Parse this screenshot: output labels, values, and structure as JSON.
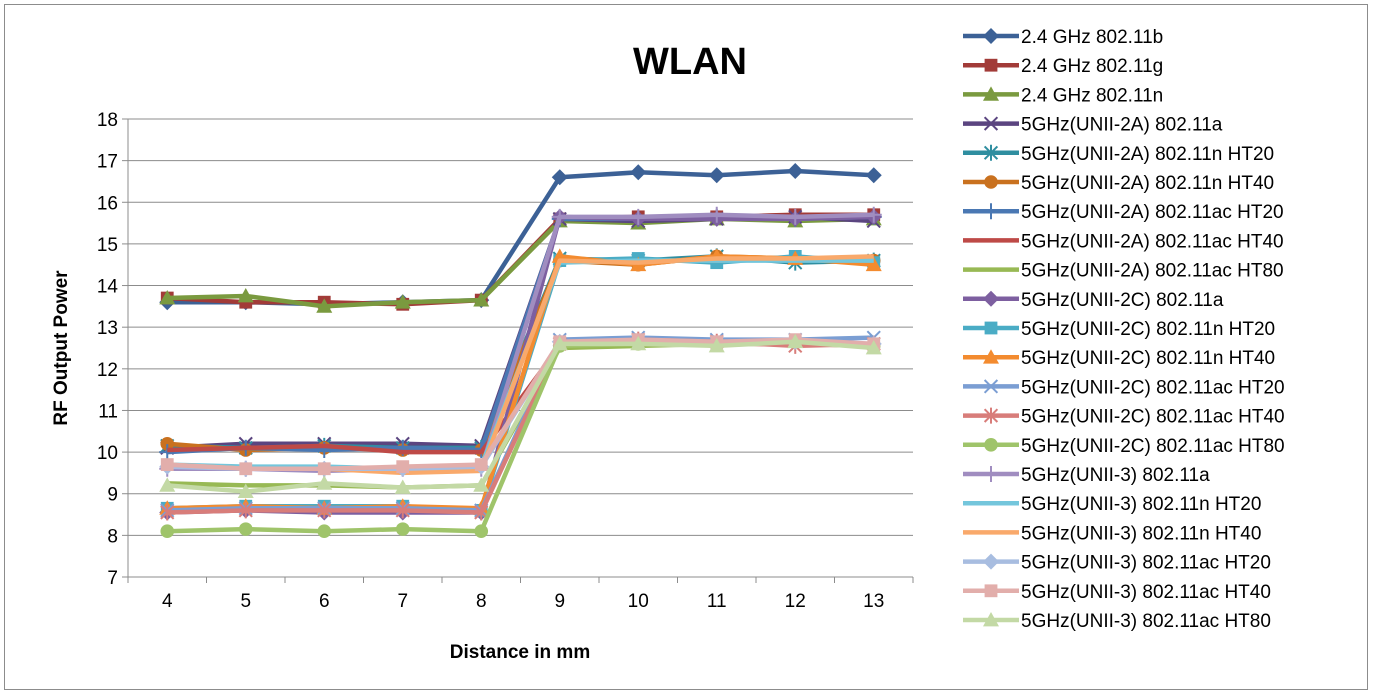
{
  "chart_data": {
    "type": "line",
    "title": "WLAN",
    "xlabel": "Distance in mm",
    "ylabel": "RF Output Power",
    "x": [
      4,
      5,
      6,
      7,
      8,
      9,
      10,
      11,
      12,
      13
    ],
    "ylim": [
      7,
      18
    ],
    "yticks": [
      "7",
      "8",
      "9",
      "10",
      "11",
      "12",
      "13",
      "14",
      "15",
      "16",
      "17",
      "18"
    ],
    "xticks": [
      "4",
      "5",
      "6",
      "7",
      "8",
      "9",
      "10",
      "11",
      "12",
      "13"
    ],
    "grid": "horizontal",
    "legend_position": "right",
    "series": [
      {
        "name": "2.4 GHz 802.11b",
        "color": "#3c6196",
        "marker": "diamond",
        "values": [
          13.6,
          13.6,
          13.55,
          13.6,
          13.65,
          16.6,
          16.72,
          16.65,
          16.75,
          16.65
        ]
      },
      {
        "name": "2.4 GHz 802.11g",
        "color": "#a23b38",
        "marker": "square",
        "values": [
          13.7,
          13.6,
          13.6,
          13.55,
          13.65,
          15.6,
          15.65,
          15.65,
          15.7,
          15.7
        ]
      },
      {
        "name": "2.4 GHz 802.11n",
        "color": "#7a9a3f",
        "marker": "triangle",
        "values": [
          13.7,
          13.75,
          13.5,
          13.6,
          13.65,
          15.55,
          15.5,
          15.6,
          15.55,
          15.6
        ]
      },
      {
        "name": "5GHz(UNII-2A) 802.11a",
        "color": "#5b4580",
        "marker": "x",
        "values": [
          10.1,
          10.2,
          10.2,
          10.2,
          10.15,
          15.6,
          15.55,
          15.6,
          15.65,
          15.55
        ]
      },
      {
        "name": "5GHz(UNII-2A) 802.11n HT20",
        "color": "#2f8ea0",
        "marker": "asterisk",
        "values": [
          10.15,
          10.1,
          10.15,
          10.1,
          10.1,
          14.65,
          14.6,
          14.7,
          14.55,
          14.6
        ]
      },
      {
        "name": "5GHz(UNII-2A) 802.11n HT40",
        "color": "#c9711f",
        "marker": "circle",
        "values": [
          10.2,
          10.05,
          10.1,
          10.05,
          10.05,
          14.6,
          14.5,
          14.7,
          14.65,
          14.6
        ]
      },
      {
        "name": "5GHz(UNII-2A) 802.11ac HT20",
        "color": "#4a78b3",
        "marker": "plus",
        "values": [
          10.0,
          10.1,
          10.05,
          10.1,
          10.05,
          15.6,
          15.6,
          15.65,
          15.6,
          15.65
        ]
      },
      {
        "name": "5GHz(UNII-2A) 802.11ac HT40",
        "color": "#be4a47",
        "marker": "none",
        "values": [
          10.05,
          10.1,
          10.15,
          10.0,
          10.0,
          12.55,
          12.6,
          12.6,
          12.6,
          12.55
        ]
      },
      {
        "name": "5GHz(UNII-2A) 802.11ac HT80",
        "color": "#98b954",
        "marker": "none",
        "values": [
          9.25,
          9.2,
          9.2,
          9.15,
          9.2,
          12.5,
          12.55,
          12.6,
          12.6,
          12.55
        ]
      },
      {
        "name": "5GHz(UNII-2C) 802.11a",
        "color": "#7d5fa0",
        "marker": "diamond",
        "values": [
          8.55,
          8.6,
          8.55,
          8.55,
          8.55,
          15.65,
          15.6,
          15.6,
          15.6,
          15.65
        ]
      },
      {
        "name": "5GHz(UNII-2C) 802.11n HT20",
        "color": "#4aacc5",
        "marker": "square",
        "values": [
          8.65,
          8.7,
          8.7,
          8.7,
          8.6,
          14.6,
          14.65,
          14.55,
          14.7,
          14.55
        ]
      },
      {
        "name": "5GHz(UNII-2C) 802.11n HT40",
        "color": "#f38b2f",
        "marker": "triangle",
        "values": [
          8.65,
          8.7,
          8.65,
          8.7,
          8.65,
          14.7,
          14.5,
          14.7,
          14.65,
          14.5
        ]
      },
      {
        "name": "5GHz(UNII-2C) 802.11ac HT20",
        "color": "#7b9ed3",
        "marker": "x",
        "values": [
          8.6,
          8.65,
          8.65,
          8.65,
          8.6,
          12.7,
          12.75,
          12.7,
          12.7,
          12.75
        ]
      },
      {
        "name": "5GHz(UNII-2C) 802.11ac HT40",
        "color": "#d87d7a",
        "marker": "asterisk",
        "values": [
          8.55,
          8.6,
          8.6,
          8.6,
          8.55,
          12.6,
          12.7,
          12.65,
          12.55,
          12.6
        ]
      },
      {
        "name": "5GHz(UNII-2C) 802.11ac HT80",
        "color": "#9fc46a",
        "marker": "circle",
        "values": [
          8.1,
          8.15,
          8.1,
          8.15,
          8.1,
          12.55,
          12.6,
          12.6,
          12.65,
          12.55
        ]
      },
      {
        "name": "5GHz(UNII-3) 802.11a",
        "color": "#a08dc0",
        "marker": "plus",
        "values": [
          9.6,
          9.6,
          9.55,
          9.6,
          9.6,
          15.65,
          15.65,
          15.7,
          15.65,
          15.7
        ]
      },
      {
        "name": "5GHz(UNII-3) 802.11n HT20",
        "color": "#74c6dc",
        "marker": "none",
        "values": [
          9.7,
          9.65,
          9.65,
          9.6,
          9.65,
          14.55,
          14.6,
          14.6,
          14.6,
          14.6
        ]
      },
      {
        "name": "5GHz(UNII-3) 802.11n HT40",
        "color": "#f9a96b",
        "marker": "none",
        "values": [
          9.7,
          9.6,
          9.6,
          9.5,
          9.55,
          14.6,
          14.55,
          14.65,
          14.65,
          14.7
        ]
      },
      {
        "name": "5GHz(UNII-3) 802.11ac HT20",
        "color": "#a8bde0",
        "marker": "diamond",
        "values": [
          9.65,
          9.6,
          9.6,
          9.6,
          9.65,
          12.65,
          12.65,
          12.6,
          12.65,
          12.6
        ]
      },
      {
        "name": "5GHz(UNII-3) 802.11ac HT40",
        "color": "#e2aeab",
        "marker": "square",
        "values": [
          9.7,
          9.6,
          9.6,
          9.65,
          9.7,
          12.65,
          12.7,
          12.65,
          12.7,
          12.6
        ]
      },
      {
        "name": "5GHz(UNII-3) 802.11ac HT80",
        "color": "#c3d9a5",
        "marker": "triangle",
        "values": [
          9.2,
          9.05,
          9.25,
          9.15,
          9.2,
          12.6,
          12.6,
          12.55,
          12.65,
          12.5
        ]
      }
    ]
  }
}
